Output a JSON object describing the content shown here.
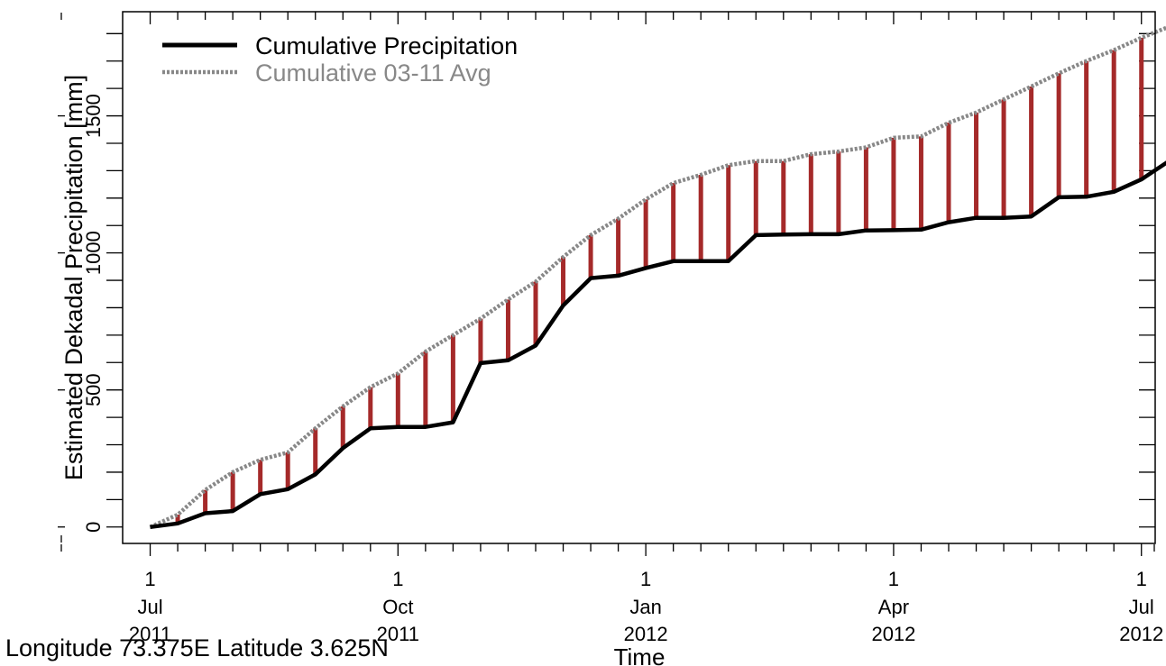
{
  "chart_data": {
    "type": "line",
    "ylabel": "Estimated Dekadal Precipitation [mm]",
    "xlabel": "Time",
    "ylim": [
      -60,
      1880
    ],
    "y_ticks": [
      0,
      500,
      1000,
      1500
    ],
    "y_minor_step": 100,
    "x_range": [
      -1,
      36.5
    ],
    "x_ticks": [
      {
        "x": 0,
        "day": "1",
        "month": "Jul",
        "year": "2011"
      },
      {
        "x": 9,
        "day": "1",
        "month": "Oct",
        "year": "2011"
      },
      {
        "x": 18,
        "day": "1",
        "month": "Jan",
        "year": "2012"
      },
      {
        "x": 27,
        "day": "1",
        "month": "Apr",
        "year": "2012"
      },
      {
        "x": 36,
        "day": "1",
        "month": "Jul",
        "year": "2012"
      }
    ],
    "legend": {
      "position": "top-left",
      "entries": [
        "Cumulative Precipitation",
        "Cumulative 03-11 Avg"
      ]
    },
    "series": [
      {
        "name": "Cumulative Precipitation",
        "style": "solid",
        "color": "#000000",
        "values": [
          0,
          13,
          50,
          58,
          120,
          138,
          192,
          288,
          360,
          365,
          365,
          382,
          598,
          608,
          662,
          808,
          908,
          917,
          945,
          970,
          970,
          970,
          1065,
          1067,
          1068,
          1068,
          1082,
          1083,
          1085,
          1112,
          1128,
          1128,
          1133,
          1203,
          1205,
          1223,
          1268,
          1335
        ]
      },
      {
        "name": "Cumulative 03-11 Avg",
        "style": "dotted",
        "color": "#888888",
        "values": [
          0,
          45,
          135,
          200,
          245,
          272,
          360,
          440,
          510,
          560,
          640,
          700,
          760,
          830,
          895,
          985,
          1065,
          1125,
          1195,
          1255,
          1285,
          1320,
          1335,
          1335,
          1360,
          1370,
          1385,
          1420,
          1425,
          1475,
          1512,
          1560,
          1607,
          1655,
          1700,
          1740,
          1785,
          1825
        ]
      }
    ],
    "difference_bars": {
      "color": "#a52a2a",
      "between": [
        "Cumulative Precipitation",
        "Cumulative 03-11 Avg"
      ]
    }
  },
  "footer": {
    "location": "Longitude 73.375E Latitude 3.625N"
  }
}
